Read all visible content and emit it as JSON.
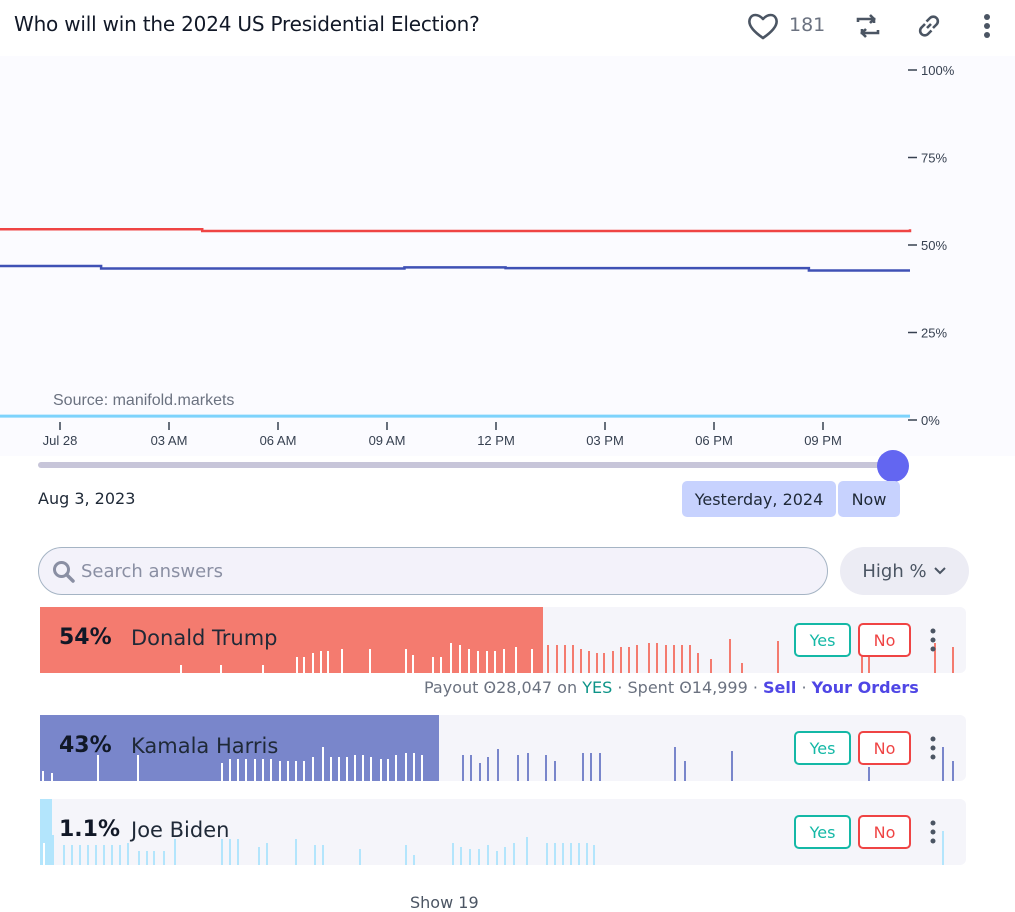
{
  "header": {
    "title": "Who will win the 2024 US Presidential Election?",
    "likes": "181"
  },
  "chart_data": {
    "type": "line",
    "source_label": "Source: manifold.markets",
    "y_ticks": [
      "100%",
      "75%",
      "50%",
      "25%",
      "0%"
    ],
    "x_ticks": [
      "Jul 28",
      "03 AM",
      "06 AM",
      "09 AM",
      "12 PM",
      "03 PM",
      "06 PM",
      "09 PM"
    ],
    "ylim": [
      0,
      100
    ],
    "series": [
      {
        "color": "#ef4444",
        "values": [
          54.5,
          54.5,
          54.0,
          54.0,
          54.0,
          54.0,
          54.0,
          54.0,
          54.0,
          54.5
        ]
      },
      {
        "color": "#3f51b5",
        "values": [
          44.0,
          43.3,
          43.3,
          43.3,
          43.6,
          43.4,
          43.4,
          43.4,
          42.7,
          42.7
        ]
      },
      {
        "color": "#7dd3fc",
        "values": [
          1.1,
          1.1,
          1.1,
          1.1,
          1.1,
          1.1,
          1.1,
          1.1,
          1.1,
          1.1
        ]
      }
    ]
  },
  "timeline": {
    "start_date": "Aug 3, 2023",
    "yesterday_label": "Yesterday, 2024",
    "now_label": "Now"
  },
  "search": {
    "placeholder": "Search answers"
  },
  "sort": {
    "label": "High %"
  },
  "answers": [
    {
      "pct": "54%",
      "name": "Donald Trump",
      "prob": 0.54,
      "color": "#f47b6f",
      "spike": "#f47b6f"
    },
    {
      "pct": "43%",
      "name": "Kamala Harris",
      "prob": 0.43,
      "color": "#7986cb",
      "spike": "#7986cb"
    },
    {
      "pct": "1.1%",
      "name": "Joe Biden",
      "prob": 0.011,
      "color": "#b3e5fc",
      "spike": "#b3e5fc"
    }
  ],
  "buttons": {
    "yes": "Yes",
    "no": "No"
  },
  "position": {
    "payout_prefix": "Payout",
    "payout_amount": "Ꙩ28,047",
    "on": "on",
    "outcome": "YES",
    "spent_prefix": "Spent",
    "spent_amount": "Ꙩ14,999",
    "sell": "Sell",
    "orders": "Your Orders"
  },
  "footer": {
    "partial": "Show 19"
  }
}
